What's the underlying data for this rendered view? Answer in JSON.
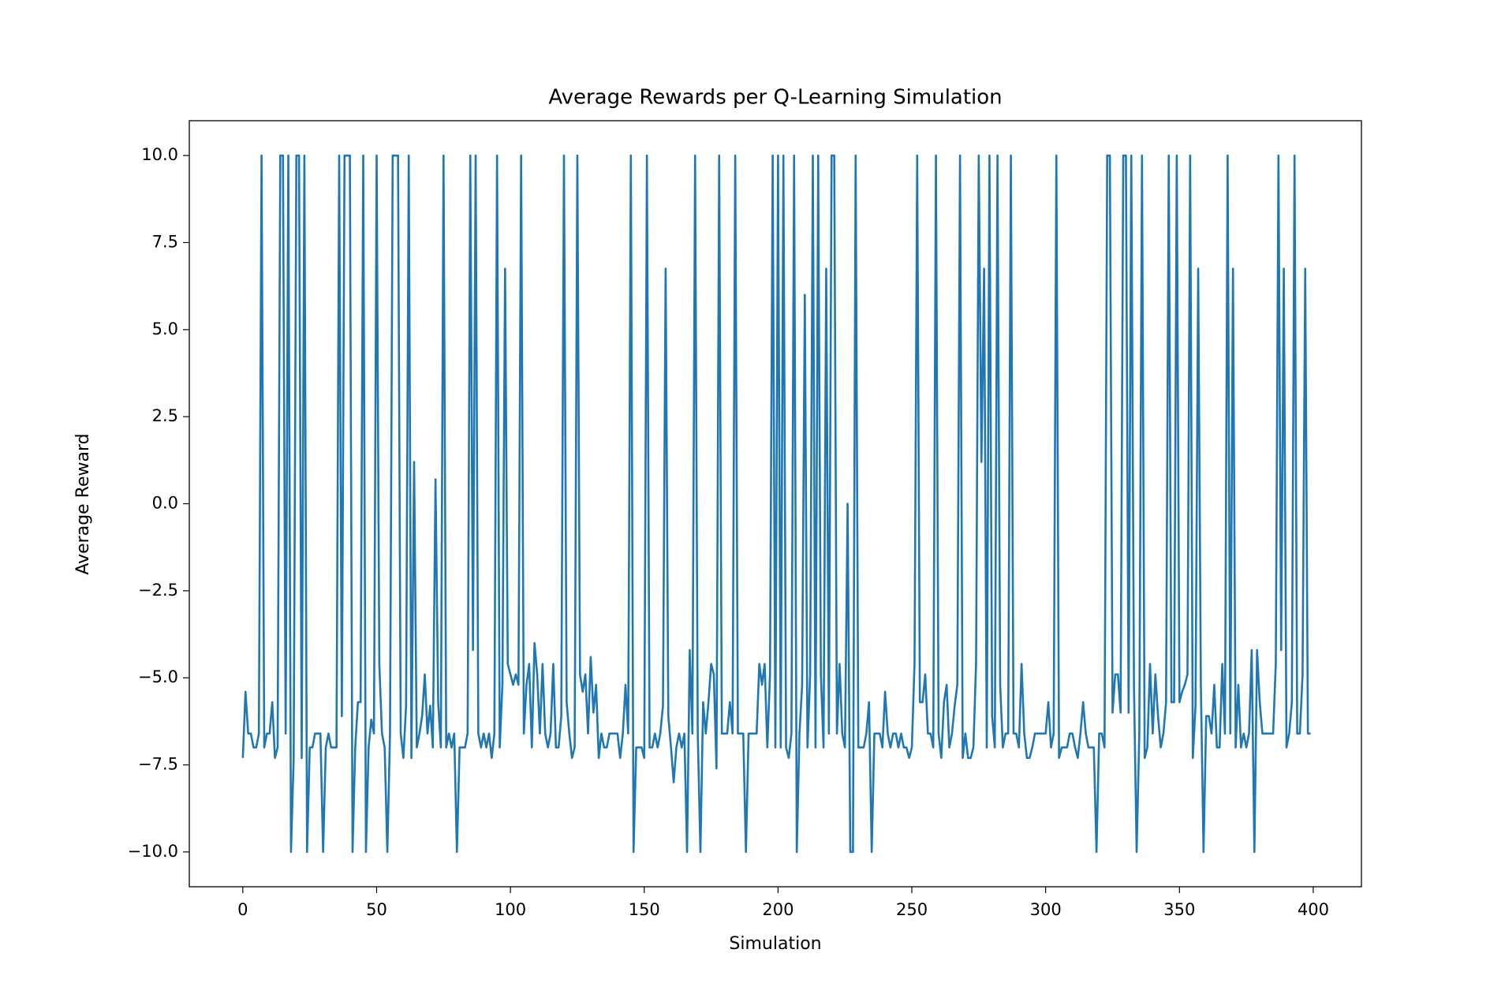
{
  "chart_data": {
    "type": "line",
    "title": "Average Rewards per Q-Learning Simulation",
    "x_label": "Simulation",
    "y_label": "Average Reward",
    "color": "#1f77b4",
    "x": [
      0,
      1,
      2,
      3,
      4,
      5,
      6,
      7,
      8,
      9,
      10,
      11,
      12,
      13,
      14,
      15,
      16,
      17,
      18,
      19,
      20,
      21,
      22,
      23,
      24,
      25,
      26,
      27,
      28,
      29,
      30,
      31,
      32,
      33,
      34,
      35,
      36,
      37,
      38,
      39,
      40,
      41,
      42,
      43,
      44,
      45,
      46,
      47,
      48,
      49,
      50,
      51,
      52,
      53,
      54,
      55,
      56,
      57,
      58,
      59,
      60,
      61,
      62,
      63,
      64,
      65,
      66,
      67,
      68,
      69,
      70,
      71,
      72,
      73,
      74,
      75,
      76,
      77,
      78,
      79,
      80,
      81,
      82,
      83,
      84,
      85,
      86,
      87,
      88,
      89,
      90,
      91,
      92,
      93,
      94,
      95,
      96,
      97,
      98,
      99,
      100,
      101,
      102,
      103,
      104,
      105,
      106,
      107,
      108,
      109,
      110,
      111,
      112,
      113,
      114,
      115,
      116,
      117,
      118,
      119,
      120,
      121,
      122,
      123,
      124,
      125,
      126,
      127,
      128,
      129,
      130,
      131,
      132,
      133,
      134,
      135,
      136,
      137,
      138,
      139,
      140,
      141,
      142,
      143,
      144,
      145,
      146,
      147,
      148,
      149,
      150,
      151,
      152,
      153,
      154,
      155,
      156,
      157,
      158,
      159,
      160,
      161,
      162,
      163,
      164,
      165,
      166,
      167,
      168,
      169,
      170,
      171,
      172,
      173,
      174,
      175,
      176,
      177,
      178,
      179,
      180,
      181,
      182,
      183,
      184,
      185,
      186,
      187,
      188,
      189,
      190,
      191,
      192,
      193,
      194,
      195,
      196,
      197,
      198,
      199,
      200,
      201,
      202,
      203,
      204,
      205,
      206,
      207,
      208,
      209,
      210,
      211,
      212,
      213,
      214,
      215,
      216,
      217,
      218,
      219,
      220,
      221,
      222,
      223,
      224,
      225,
      226,
      227,
      228,
      229,
      230,
      231,
      232,
      233,
      234,
      235,
      236,
      237,
      238,
      239,
      240,
      241,
      242,
      243,
      244,
      245,
      246,
      247,
      248,
      249,
      250,
      251,
      252,
      253,
      254,
      255,
      256,
      257,
      258,
      259,
      260,
      261,
      262,
      263,
      264,
      265,
      266,
      267,
      268,
      269,
      270,
      271,
      272,
      273,
      274,
      275,
      276,
      277,
      278,
      279,
      280,
      281,
      282,
      283,
      284,
      285,
      286,
      287,
      288,
      289,
      290,
      291,
      292,
      293,
      294,
      295,
      296,
      297,
      298,
      299,
      300,
      301,
      302,
      303,
      304,
      305,
      306,
      307,
      308,
      309,
      310,
      311,
      312,
      313,
      314,
      315,
      316,
      317,
      318,
      319,
      320,
      321,
      322,
      323,
      324,
      325,
      326,
      327,
      328,
      329,
      330,
      331,
      332,
      333,
      334,
      335,
      336,
      337,
      338,
      339,
      340,
      341,
      342,
      343,
      344,
      345,
      346,
      347,
      348,
      349,
      350,
      351,
      352,
      353,
      354,
      355,
      356,
      357,
      358,
      359,
      360,
      361,
      362,
      363,
      364,
      365,
      366,
      367,
      368,
      369,
      370,
      371,
      372,
      373,
      374,
      375,
      376,
      377,
      378,
      379,
      380,
      381,
      382,
      383,
      384,
      385,
      386,
      387,
      388,
      389,
      390,
      391,
      392,
      393,
      394,
      395,
      396,
      397,
      398,
      399
    ],
    "values": [
      -7.3,
      -5.4,
      -6.6,
      -6.6,
      -7,
      -7,
      -6.6,
      10,
      -7,
      -6.6,
      -6.6,
      -5.7,
      -7.3,
      -7,
      10,
      10,
      -6.6,
      10,
      -10,
      -7.3,
      10,
      10,
      -7.3,
      10,
      -10,
      -7,
      -7,
      -6.6,
      -6.6,
      -6.6,
      -10,
      -7,
      -6.6,
      -7,
      -7,
      -7,
      10,
      -6.1,
      10,
      10,
      10,
      -10,
      -7,
      -5.7,
      -5.7,
      10,
      -10,
      -7,
      -6.2,
      -6.6,
      10,
      -4.6,
      -6.6,
      -7,
      -10,
      -6.6,
      10,
      10,
      10,
      -6.6,
      -7.3,
      -5.8,
      10,
      -7.3,
      1.2,
      -7,
      -6.6,
      -6.1,
      -4.9,
      -6.6,
      -5.8,
      -7,
      0.7,
      -5.7,
      -7,
      10,
      -7,
      -6.6,
      -7,
      -6.6,
      -10,
      -7,
      -7,
      -7,
      -6.6,
      10,
      -4.2,
      10,
      -6.6,
      -7,
      -6.6,
      -7,
      -6.6,
      -7.3,
      -6.6,
      10,
      -7,
      -5.2,
      6.75,
      -4.6,
      -4.9,
      -5.2,
      -4.9,
      -5.2,
      10,
      -6.6,
      -5.2,
      -4.6,
      -7,
      -4,
      -4.9,
      -6.6,
      -4.6,
      -6.6,
      -7,
      -6.6,
      -4.6,
      -7,
      -7,
      -6.1,
      10,
      -5.7,
      -6.6,
      -7.3,
      -7,
      10,
      -4.9,
      -5.4,
      -4.9,
      -6.6,
      -4.4,
      -6,
      -5.2,
      -7.3,
      -6.6,
      -7,
      -7,
      -6.6,
      -6.6,
      -6.6,
      -6.6,
      -7.3,
      -6.6,
      -5.2,
      -6.6,
      10,
      -10,
      -7,
      -7,
      -7,
      -7.3,
      10,
      -7,
      -7,
      -6.6,
      -7,
      -6.6,
      -5.8,
      6.75,
      -6.1,
      -7,
      -8,
      -7,
      -6.6,
      -7,
      -6.6,
      -10,
      -4.2,
      -6.6,
      10,
      -6.6,
      -10,
      -5.7,
      -6.6,
      -5.7,
      -4.6,
      -4.9,
      -7.6,
      10,
      -6.6,
      -6.6,
      -6.6,
      -5.7,
      -6.6,
      10,
      -6.6,
      -6.6,
      -6.6,
      -10,
      -6.6,
      -6.6,
      -6.6,
      -6.6,
      -4.6,
      -5.2,
      -4.6,
      -7,
      -4.9,
      10,
      -7,
      10,
      -7,
      10,
      -7,
      -7.3,
      -6.6,
      10,
      -10,
      -6.6,
      -5.2,
      6,
      -7,
      -4.9,
      10,
      -7,
      10,
      -4.9,
      -7,
      6.75,
      -6.6,
      10,
      10,
      -6.6,
      -4.6,
      -6.6,
      -7,
      0,
      -10,
      -10,
      10,
      -7,
      -7,
      -7,
      -6.6,
      -5.7,
      -10,
      -6.6,
      -6.6,
      -6.6,
      -7,
      -5.4,
      -6.6,
      -7,
      -6.6,
      -6.6,
      -7,
      -6.6,
      -7,
      -7,
      -7.3,
      -7,
      -4.6,
      10,
      -5.7,
      -5.7,
      -4.9,
      -6.6,
      -6.6,
      -7,
      10,
      -6.6,
      -7.3,
      -5.7,
      -5.2,
      -7,
      -6.6,
      -5.8,
      -5.2,
      10,
      -7.3,
      -6.6,
      -7.3,
      -7.3,
      -7,
      -4.6,
      10,
      1.2,
      6.75,
      -7,
      10,
      -6.1,
      -7,
      10,
      -5.2,
      -7,
      -6.6,
      -6.6,
      10,
      -6.6,
      -6.6,
      -7,
      -4.6,
      -6.6,
      -7.3,
      -7.3,
      -7,
      -6.6,
      -6.6,
      -6.6,
      -6.6,
      -6.6,
      -5.7,
      -7,
      -6.6,
      10,
      -7.3,
      -7,
      -7,
      -7,
      -6.6,
      -6.6,
      -7,
      -7.3,
      -6.6,
      -5.7,
      -6.6,
      -7,
      -7,
      -7,
      -10,
      -6.6,
      -6.6,
      -7,
      10,
      10,
      -6,
      -4.9,
      -4.9,
      -6,
      10,
      10,
      -6,
      10,
      -5.2,
      -10,
      -6.6,
      10,
      -7.3,
      -7,
      -4.6,
      -6.6,
      -4.9,
      -6.1,
      -7,
      -6.6,
      -5.7,
      10,
      -5.7,
      -5.7,
      10,
      -5.7,
      -5.4,
      -5.2,
      -4.9,
      10,
      -7.3,
      -5.8,
      6.75,
      -5.2,
      -10,
      -6.1,
      -6.1,
      -6.6,
      -5.2,
      -7,
      -7,
      -4.6,
      -6.6,
      10,
      -6.6,
      6.75,
      -7,
      -5.2,
      -7,
      -6.6,
      -7,
      -6.6,
      -4.2,
      -10,
      -4.2,
      -5.7,
      -6.6,
      -6.6,
      -6.6,
      -6.6,
      -6.6,
      -4.6,
      10,
      -4.2,
      6.75,
      -7,
      -6.6,
      -5.7,
      10,
      -6.6,
      -6.6,
      -4.9,
      6.75,
      -6.6,
      -6.6
    ],
    "xlim": [
      -20,
      418
    ],
    "xticks": [
      0,
      50,
      100,
      150,
      200,
      250,
      300,
      350,
      400
    ],
    "ylim": [
      -11,
      11
    ],
    "yticks": [
      {
        "value": 10,
        "label": "10.0"
      },
      7.5,
      {
        "value": 5,
        "label": "5.0"
      },
      2.5,
      {
        "value": 0,
        "label": "0.0"
      },
      {
        "value": -2.5,
        "label": "−2.5"
      },
      {
        "value": -5,
        "label": "−5.0"
      },
      {
        "value": -7.5,
        "label": "−7.5"
      },
      {
        "value": -10,
        "label": "−10.0"
      }
    ],
    "grid": false
  }
}
